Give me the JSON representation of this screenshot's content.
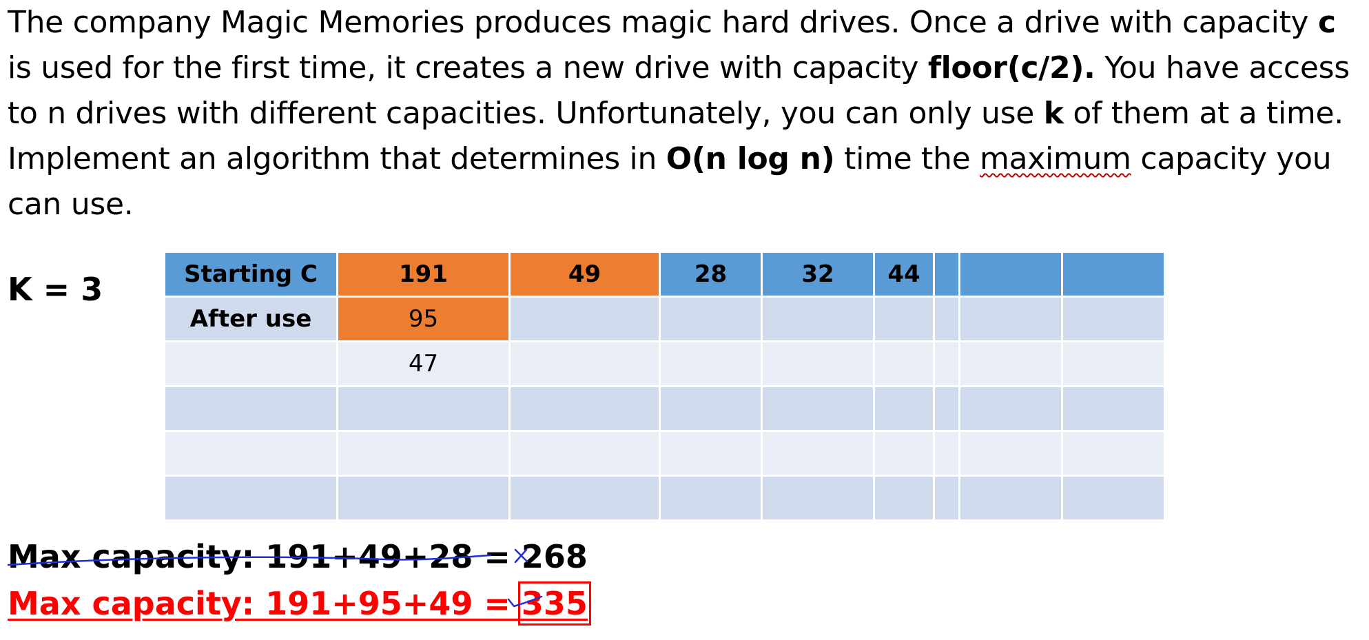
{
  "problem": {
    "t1": "The company Magic Memories produces magic hard drives. Once a drive with capacity ",
    "b1": "c",
    "t2": " is used for the first time, it creates a new drive with capacity ",
    "b2": "floor(c/2).",
    "t3": " You have access to n drives with different capacities. Unfortunately, you can only use ",
    "b3": "k",
    "t4": " of them at a time. Implement an algorithm that determines in ",
    "b4": "O(n log n)",
    "t5": " time the ",
    "u1": "maximum",
    "t6": " capacity you can use."
  },
  "k_label": "K = 3",
  "table": {
    "rows": [
      [
        "Starting C",
        "191",
        "49",
        "28",
        "32",
        "44",
        "",
        "",
        ""
      ],
      [
        "After use",
        "95",
        "",
        "",
        "",
        "",
        "",
        "",
        ""
      ],
      [
        "",
        "47",
        "",
        "",
        "",
        "",
        "",
        "",
        ""
      ],
      [
        "",
        "",
        "",
        "",
        "",
        "",
        "",
        "",
        ""
      ],
      [
        "",
        "",
        "",
        "",
        "",
        "",
        "",
        "",
        ""
      ],
      [
        "",
        "",
        "",
        "",
        "",
        "",
        "",
        "",
        ""
      ]
    ]
  },
  "results": {
    "wrong": "Max capacity: 191+49+28 = 268",
    "right_prefix": "Max capacity: 191+95+49 = ",
    "right_value": "335"
  },
  "colors": {
    "header": "#5b9bd5",
    "highlight": "#ed7d31",
    "row_dark": "#cfdaec",
    "row_light": "#e9edf6",
    "ink_blue": "#1f2fd6",
    "ink_red": "#ff0000"
  },
  "annotations": {
    "cross_mark": "x-mark-icon",
    "check_mark": "checkmark-icon"
  }
}
